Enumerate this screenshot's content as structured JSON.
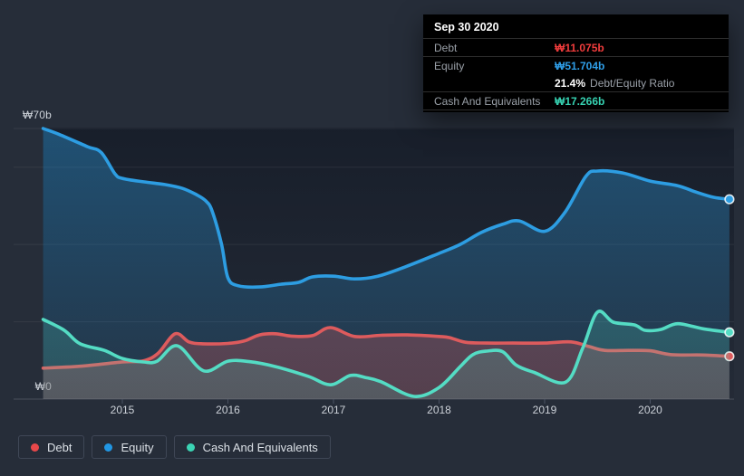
{
  "colors": {
    "background": "#262d39",
    "plot_overlay": "#0a101c",
    "gridline": "rgba(255,255,255,0.07)",
    "axis_line": "rgba(255,255,255,0.17)",
    "tooltip_debt_value": "#f03c3c",
    "tooltip_equity_value": "#2f9ee8",
    "tooltip_cash_value": "#36d1b1"
  },
  "tooltip": {
    "date": "Sep 30 2020",
    "rows": {
      "debt_label": "Debt",
      "debt_value": "₩11.075b",
      "equity_label": "Equity",
      "equity_value": "₩51.704b",
      "ratio_percent": "21.4%",
      "ratio_label": "Debt/Equity Ratio",
      "cash_label": "Cash And Equivalents",
      "cash_value": "₩17.266b"
    }
  },
  "legend": {
    "items": [
      {
        "id": "debt",
        "label": "Debt",
        "color": "#e8484a"
      },
      {
        "id": "equity",
        "label": "Equity",
        "color": "#2196e3"
      },
      {
        "id": "cash",
        "label": "Cash And Equivalents",
        "color": "#3bd4b4"
      }
    ]
  },
  "chart_data": {
    "type": "area",
    "title": "",
    "unit": "₩ billions (KRW)",
    "grid": true,
    "legend_position": "bottom-left",
    "x_axis": {
      "ticks": [
        "2015",
        "2016",
        "2017",
        "2018",
        "2019",
        "2020"
      ],
      "range": [
        2014.25,
        2020.75
      ]
    },
    "y_axis": {
      "label_top": "₩70b",
      "label_bottom": "₩0",
      "range": [
        0,
        70
      ],
      "gridline_values": [
        0,
        20,
        40,
        60,
        70
      ]
    },
    "series": [
      {
        "name": "Equity",
        "line_color": "#2d9de2",
        "fill_opacity": [
          0.4,
          0.1
        ],
        "points": [
          [
            2014.25,
            70
          ],
          [
            2014.4,
            68.5
          ],
          [
            2014.67,
            65.3
          ],
          [
            2014.8,
            63.8
          ],
          [
            2014.93,
            58.3
          ],
          [
            2015,
            57.1
          ],
          [
            2015.2,
            56.2
          ],
          [
            2015.4,
            55.5
          ],
          [
            2015.57,
            54.5
          ],
          [
            2015.7,
            52.9
          ],
          [
            2015.79,
            51.3
          ],
          [
            2015.85,
            48.7
          ],
          [
            2015.94,
            40
          ],
          [
            2016,
            31.4
          ],
          [
            2016.1,
            29.3
          ],
          [
            2016.3,
            29
          ],
          [
            2016.5,
            29.7
          ],
          [
            2016.67,
            30.2
          ],
          [
            2016.8,
            31.6
          ],
          [
            2017,
            31.8
          ],
          [
            2017.2,
            31.1
          ],
          [
            2017.42,
            31.8
          ],
          [
            2017.68,
            34.2
          ],
          [
            2018,
            37.7
          ],
          [
            2018.2,
            40
          ],
          [
            2018.4,
            43.1
          ],
          [
            2018.6,
            45.2
          ],
          [
            2018.76,
            46.1
          ],
          [
            2019,
            43.4
          ],
          [
            2019.19,
            48.2
          ],
          [
            2019.39,
            57.6
          ],
          [
            2019.5,
            59
          ],
          [
            2019.74,
            58.5
          ],
          [
            2020,
            56.4
          ],
          [
            2020.26,
            55.2
          ],
          [
            2020.43,
            53.6
          ],
          [
            2020.6,
            52.2
          ],
          [
            2020.75,
            51.704
          ]
        ]
      },
      {
        "name": "Debt",
        "line_color": "#dd5b5d",
        "fill_opacity": [
          0.38,
          0.26
        ],
        "points": [
          [
            2014.25,
            8
          ],
          [
            2014.6,
            8.5
          ],
          [
            2015,
            9.6
          ],
          [
            2015.2,
            9.9
          ],
          [
            2015.34,
            11.9
          ],
          [
            2015.5,
            16.9
          ],
          [
            2015.63,
            14.8
          ],
          [
            2015.76,
            14.3
          ],
          [
            2016,
            14.4
          ],
          [
            2016.15,
            15
          ],
          [
            2016.3,
            16.6
          ],
          [
            2016.45,
            16.9
          ],
          [
            2016.6,
            16.3
          ],
          [
            2016.8,
            16.4
          ],
          [
            2016.97,
            18.5
          ],
          [
            2017.2,
            16.2
          ],
          [
            2017.45,
            16.5
          ],
          [
            2017.7,
            16.6
          ],
          [
            2018,
            16.2
          ],
          [
            2018.1,
            15.9
          ],
          [
            2018.25,
            14.7
          ],
          [
            2018.45,
            14.5
          ],
          [
            2018.7,
            14.5
          ],
          [
            2019,
            14.5
          ],
          [
            2019.25,
            14.8
          ],
          [
            2019.42,
            13.6
          ],
          [
            2019.57,
            12.6
          ],
          [
            2019.8,
            12.6
          ],
          [
            2020,
            12.5
          ],
          [
            2020.2,
            11.5
          ],
          [
            2020.5,
            11.4
          ],
          [
            2020.75,
            11.075
          ]
        ]
      },
      {
        "name": "Cash And Equivalents",
        "line_color": "#54dcc4",
        "fill_opacity": [
          0.3,
          0.16
        ],
        "points": [
          [
            2014.25,
            20.6
          ],
          [
            2014.45,
            17.8
          ],
          [
            2014.6,
            14.3
          ],
          [
            2014.83,
            12.6
          ],
          [
            2015,
            10.5
          ],
          [
            2015.2,
            9.6
          ],
          [
            2015.33,
            9.8
          ],
          [
            2015.52,
            13.8
          ],
          [
            2015.77,
            7.3
          ],
          [
            2016,
            9.8
          ],
          [
            2016.2,
            9.7
          ],
          [
            2016.45,
            8.4
          ],
          [
            2016.76,
            5.9
          ],
          [
            2016.97,
            3.7
          ],
          [
            2017.16,
            6.1
          ],
          [
            2017.3,
            5.6
          ],
          [
            2017.45,
            4.5
          ],
          [
            2017.76,
            0.7
          ],
          [
            2018,
            3
          ],
          [
            2018.2,
            8.4
          ],
          [
            2018.32,
            11.5
          ],
          [
            2018.45,
            12.4
          ],
          [
            2018.6,
            12.3
          ],
          [
            2018.73,
            8.8
          ],
          [
            2018.9,
            6.9
          ],
          [
            2019.2,
            4.4
          ],
          [
            2019.36,
            13.1
          ],
          [
            2019.5,
            22.5
          ],
          [
            2019.65,
            19.9
          ],
          [
            2019.85,
            19.2
          ],
          [
            2019.95,
            17.8
          ],
          [
            2020.1,
            18
          ],
          [
            2020.26,
            19.5
          ],
          [
            2020.5,
            18.2
          ],
          [
            2020.75,
            17.266
          ]
        ]
      }
    ]
  }
}
